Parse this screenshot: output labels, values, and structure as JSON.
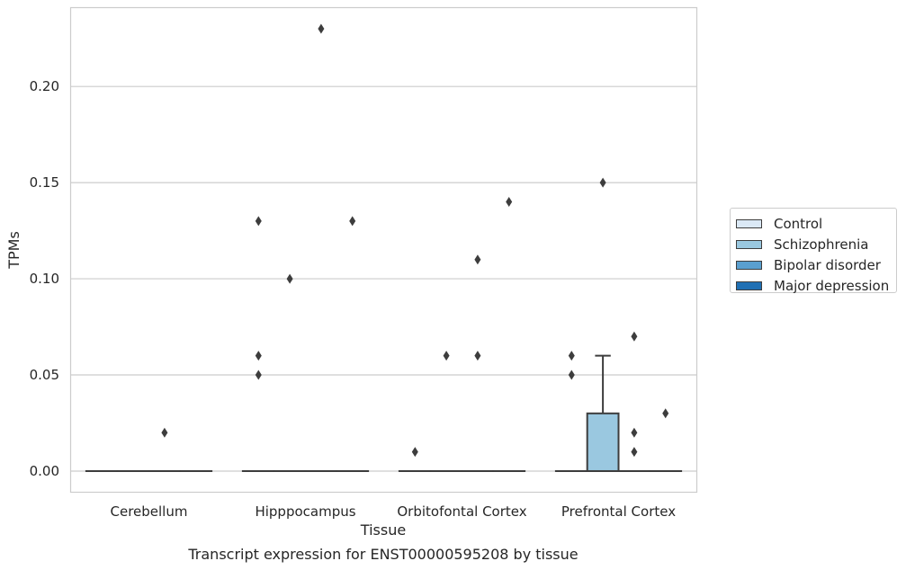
{
  "chart_data": {
    "type": "box",
    "caption": "Transcript expression for ENST00000595208 by tissue",
    "xlabel": "Tissue",
    "ylabel": "TPMs",
    "ylim": [
      -0.011,
      0.241
    ],
    "yticks": [
      0.0,
      0.05,
      0.1,
      0.15,
      0.2
    ],
    "ytick_labels": [
      "0.00",
      "0.05",
      "0.10",
      "0.15",
      "0.20"
    ],
    "grid": "horizontal",
    "legend_position": "right",
    "categories": [
      "Cerebellum",
      "Hipppocampus",
      "Orbitofontal Cortex",
      "Prefrontal Cortex"
    ],
    "series": [
      {
        "name": "Control",
        "color": "#dbe9f6",
        "boxes": [
          {
            "q1": 0,
            "median": 0,
            "q3": 0,
            "whisker_low": 0,
            "whisker_high": 0,
            "outliers": []
          },
          {
            "q1": 0,
            "median": 0,
            "q3": 0,
            "whisker_low": 0,
            "whisker_high": 0,
            "outliers": [
              0.05,
              0.06,
              0.13
            ]
          },
          {
            "q1": 0,
            "median": 0,
            "q3": 0,
            "whisker_low": 0,
            "whisker_high": 0,
            "outliers": [
              0.01
            ]
          },
          {
            "q1": 0,
            "median": 0,
            "q3": 0,
            "whisker_low": 0,
            "whisker_high": 0,
            "outliers": [
              0.05,
              0.06
            ]
          }
        ]
      },
      {
        "name": "Schizophrenia",
        "color": "#9ac8e0",
        "boxes": [
          {
            "q1": 0,
            "median": 0,
            "q3": 0,
            "whisker_low": 0,
            "whisker_high": 0,
            "outliers": []
          },
          {
            "q1": 0,
            "median": 0,
            "q3": 0,
            "whisker_low": 0,
            "whisker_high": 0,
            "outliers": [
              0.1
            ]
          },
          {
            "q1": 0,
            "median": 0,
            "q3": 0,
            "whisker_low": 0,
            "whisker_high": 0,
            "outliers": [
              0.06
            ]
          },
          {
            "q1": 0,
            "median": 0,
            "q3": 0.03,
            "whisker_low": 0,
            "whisker_high": 0.06,
            "outliers": [
              0.15
            ]
          }
        ]
      },
      {
        "name": "Bipolar disorder",
        "color": "#5a9fcf",
        "boxes": [
          {
            "q1": 0,
            "median": 0,
            "q3": 0,
            "whisker_low": 0,
            "whisker_high": 0,
            "outliers": [
              0.02
            ]
          },
          {
            "q1": 0,
            "median": 0,
            "q3": 0,
            "whisker_low": 0,
            "whisker_high": 0,
            "outliers": [
              0.23
            ]
          },
          {
            "q1": 0,
            "median": 0,
            "q3": 0,
            "whisker_low": 0,
            "whisker_high": 0,
            "outliers": [
              0.06,
              0.11
            ]
          },
          {
            "q1": 0,
            "median": 0,
            "q3": 0,
            "whisker_low": 0,
            "whisker_high": 0,
            "outliers": [
              0.01,
              0.02,
              0.07
            ]
          }
        ]
      },
      {
        "name": "Major depression",
        "color": "#2070b4",
        "boxes": [
          {
            "q1": 0,
            "median": 0,
            "q3": 0,
            "whisker_low": 0,
            "whisker_high": 0,
            "outliers": []
          },
          {
            "q1": 0,
            "median": 0,
            "q3": 0,
            "whisker_low": 0,
            "whisker_high": 0,
            "outliers": [
              0.13
            ]
          },
          {
            "q1": 0,
            "median": 0,
            "q3": 0,
            "whisker_low": 0,
            "whisker_high": 0,
            "outliers": [
              0.14
            ]
          },
          {
            "q1": 0,
            "median": 0,
            "q3": 0,
            "whisker_low": 0,
            "whisker_high": 0,
            "outliers": [
              0.03
            ]
          }
        ]
      }
    ]
  }
}
